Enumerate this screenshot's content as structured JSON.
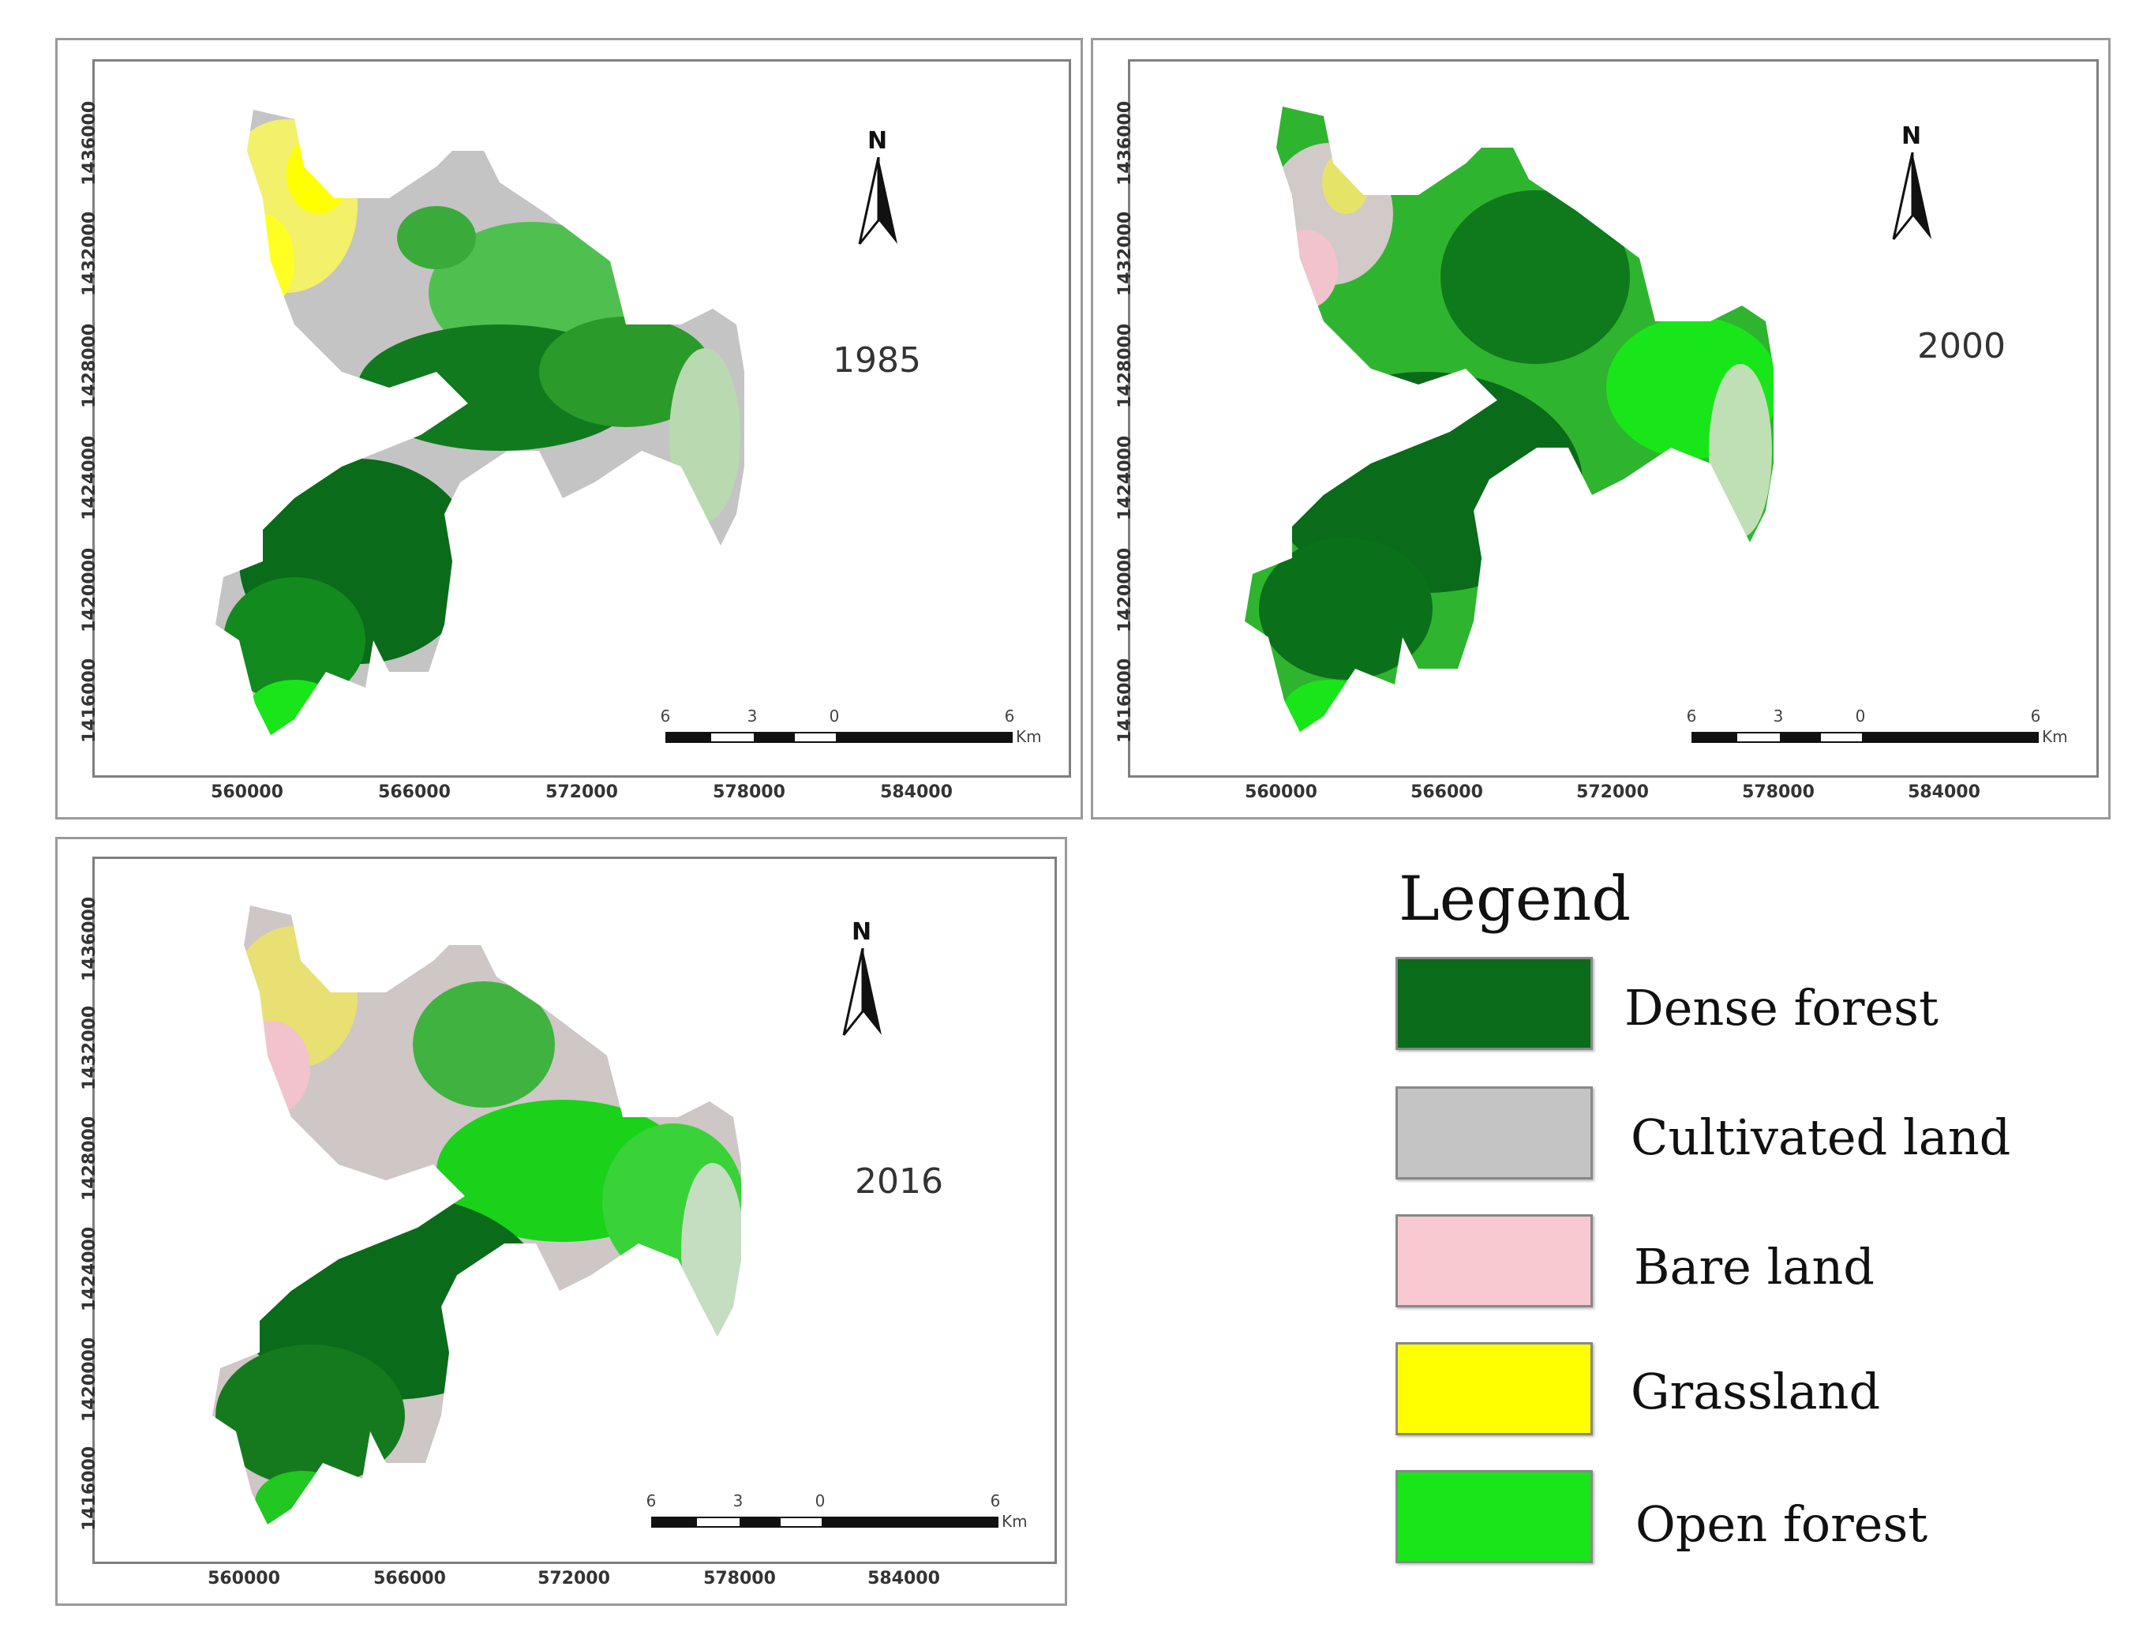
{
  "maps": [
    {
      "year": "1985",
      "x_ticks": [
        "560000",
        "566000",
        "572000",
        "578000",
        "584000"
      ],
      "y_ticks": [
        "1416000",
        "1420000",
        "1424000",
        "1428000",
        "1432000",
        "1436000"
      ],
      "north_label": "N",
      "scale_labels": [
        "6",
        "3",
        "0",
        "6"
      ],
      "scale_unit": "Km"
    },
    {
      "year": "2000",
      "x_ticks": [
        "560000",
        "566000",
        "572000",
        "578000",
        "584000"
      ],
      "y_ticks": [
        "1416000",
        "1420000",
        "1424000",
        "1428000",
        "1432000",
        "1436000"
      ],
      "north_label": "N",
      "scale_labels": [
        "6",
        "3",
        "0",
        "6"
      ],
      "scale_unit": "Km"
    },
    {
      "year": "2016",
      "x_ticks": [
        "560000",
        "566000",
        "572000",
        "578000",
        "584000"
      ],
      "y_ticks": [
        "1416000",
        "1420000",
        "1424000",
        "1428000",
        "1432000",
        "1436000"
      ],
      "north_label": "N",
      "scale_labels": [
        "6",
        "3",
        "0",
        "6"
      ],
      "scale_unit": "Km"
    }
  ],
  "legend": {
    "title": "Legend",
    "items": [
      {
        "label": "Dense forest",
        "color": "#0a6b1a"
      },
      {
        "label": "Cultivated land",
        "color": "#c4c4c4"
      },
      {
        "label": "Bare land",
        "color": "#f9c9d2"
      },
      {
        "label": "Grassland",
        "color": "#ffff00"
      },
      {
        "label": "Open forest",
        "color": "#19e619"
      }
    ]
  }
}
